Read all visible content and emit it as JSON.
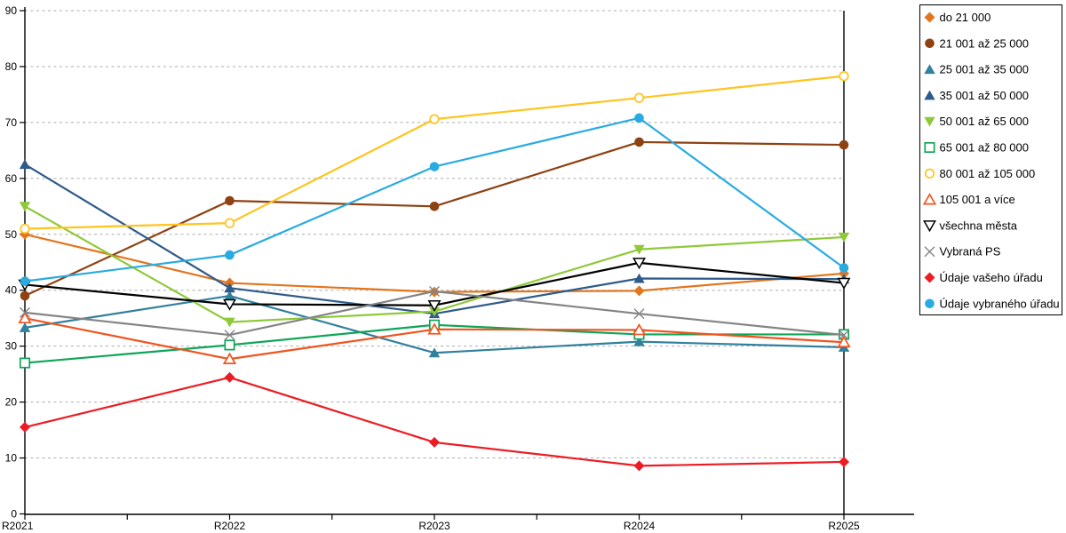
{
  "chart_data": {
    "type": "line",
    "title": "",
    "xlabel": "",
    "ylabel": "",
    "x_categories": [
      "R2021",
      "R2022",
      "R2023",
      "R2024",
      "R2025"
    ],
    "ylim": [
      0,
      90
    ],
    "y_ticks": [
      0,
      10,
      20,
      30,
      40,
      50,
      60,
      70,
      80,
      90
    ],
    "grid": "horizontal dashed gridlines, plot framed on left/right/bottom",
    "legend_position": "right, boxed",
    "series": [
      {
        "name": "do 21 000",
        "marker": "diamond-filled",
        "color": "#E2751D",
        "values": [
          50,
          41.3,
          39.7,
          39.9,
          43
        ]
      },
      {
        "name": "21 001 až 25 000",
        "marker": "circle-filled",
        "color": "#8E4212",
        "values": [
          39,
          56,
          55,
          66.5,
          66
        ]
      },
      {
        "name": "25 001 až 35 000",
        "marker": "triangle-up-filled",
        "color": "#31809C",
        "values": [
          33.3,
          39,
          28.8,
          30.8,
          29.8
        ]
      },
      {
        "name": "35 001 až 50 000",
        "marker": "triangle-up-filled",
        "color": "#2F5B8A",
        "values": [
          62.5,
          40.4,
          35.8,
          42.1,
          42
        ]
      },
      {
        "name": "50 001 až 65 000",
        "marker": "triangle-down-filled",
        "color": "#8FC93A",
        "values": [
          55,
          34.3,
          36.2,
          47.3,
          49.5
        ]
      },
      {
        "name": "65 001 až 80 000",
        "marker": "square-hollow",
        "color": "#0FA558",
        "values": [
          27,
          30.2,
          33.8,
          32.1,
          32.1
        ]
      },
      {
        "name": "80 001 až 105 000",
        "marker": "circle-hollow",
        "color": "#FFC41E",
        "values": [
          51,
          52,
          70.6,
          74.4,
          78.3
        ]
      },
      {
        "name": "105 001 a více",
        "marker": "triangle-up-hollow",
        "color": "#F0541E",
        "values": [
          35,
          27.7,
          33,
          32.9,
          30.7
        ]
      },
      {
        "name": "všechna města",
        "marker": "triangle-down-hollow",
        "color": "#000000",
        "values": [
          41,
          37.5,
          37.3,
          44.9,
          41.3
        ]
      },
      {
        "name": "Vybraná PS",
        "marker": "x",
        "color": "#848484",
        "values": [
          36,
          32,
          39.8,
          35.8,
          32
        ]
      },
      {
        "name": "Údaje vašeho úřadu",
        "marker": "diamond-filled",
        "color": "#EC1C24",
        "values": [
          15.5,
          24.4,
          12.8,
          8.6,
          9.3
        ]
      },
      {
        "name": "Údaje vybraného úřadu",
        "marker": "circle-filled",
        "color": "#29ABE2",
        "values": [
          41.6,
          46.3,
          62.1,
          70.8,
          44
        ]
      }
    ],
    "axis_color": "#000000",
    "gridline_color": "#ababab"
  }
}
